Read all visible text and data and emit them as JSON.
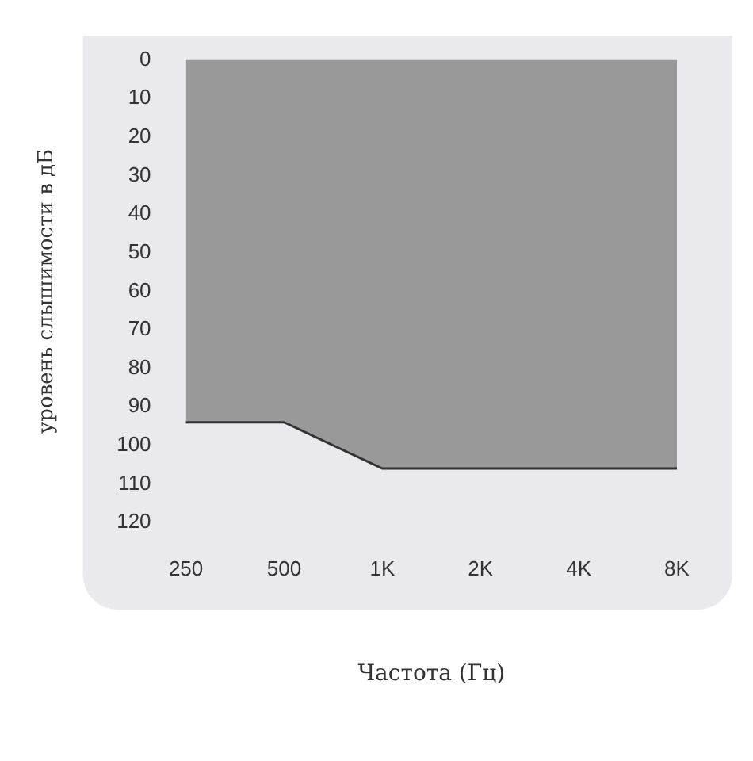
{
  "chart_data": {
    "type": "area",
    "xlabel": "Частота (Гц)",
    "ylabel": "уровень слышимости в дБ",
    "categories": [
      "250",
      "500",
      "1K",
      "2K",
      "4K",
      "8K"
    ],
    "series": [
      {
        "color": "#999999",
        "values": [
          94,
          94,
          106,
          106,
          106,
          106
        ]
      }
    ],
    "ylim": [
      120,
      0
    ],
    "yticks": [
      0,
      10,
      20,
      30,
      40,
      50,
      60,
      70,
      80,
      90,
      100,
      110,
      120
    ],
    "grid": false,
    "legend": false
  }
}
